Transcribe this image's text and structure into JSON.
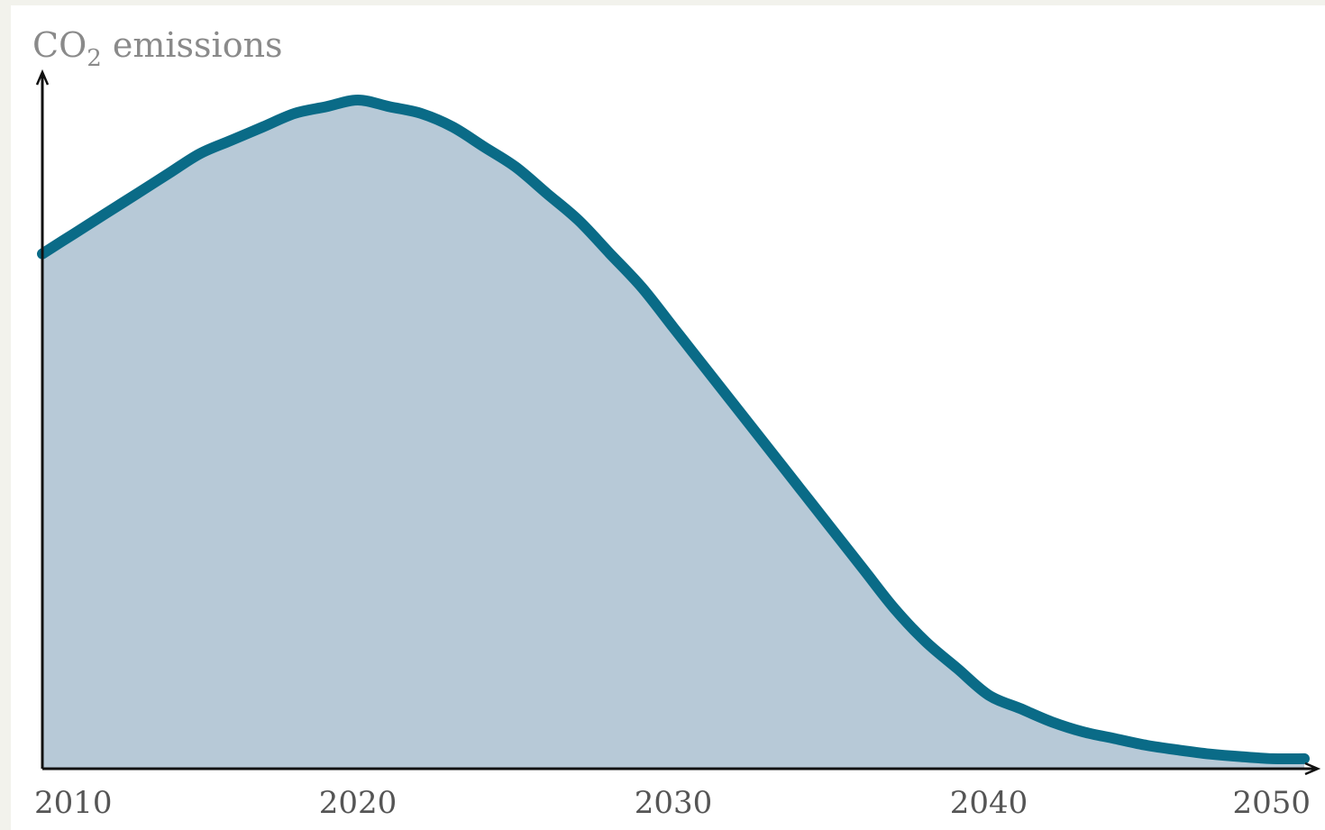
{
  "chart_data": {
    "type": "area",
    "title": "",
    "ylabel": {
      "main": "CO",
      "sub": "2",
      "rest": " emissions"
    },
    "xlabel": "",
    "x_ticks": [
      "2010",
      "2020",
      "2030",
      "2040",
      "2050"
    ],
    "xlim": [
      2010,
      2050
    ],
    "ylim": [
      0,
      1
    ],
    "y_ticks": false,
    "grid": false,
    "legend": "none",
    "series": [
      {
        "x": [
          2010,
          2011,
          2012,
          2013,
          2014,
          2015,
          2016,
          2017,
          2018,
          2019,
          2020,
          2021,
          2022,
          2023,
          2024,
          2025,
          2026,
          2027,
          2028,
          2029,
          2030,
          2031,
          2032,
          2033,
          2034,
          2035,
          2036,
          2037,
          2038,
          2039,
          2040,
          2041,
          2042,
          2043,
          2044,
          2045,
          2046,
          2047,
          2048,
          2049,
          2050
        ],
        "values": [
          0.77,
          0.8,
          0.83,
          0.86,
          0.89,
          0.92,
          0.94,
          0.96,
          0.98,
          0.99,
          1.0,
          0.99,
          0.98,
          0.96,
          0.93,
          0.9,
          0.86,
          0.82,
          0.77,
          0.72,
          0.66,
          0.6,
          0.54,
          0.48,
          0.42,
          0.36,
          0.3,
          0.24,
          0.19,
          0.15,
          0.11,
          0.09,
          0.07,
          0.055,
          0.045,
          0.035,
          0.028,
          0.022,
          0.018,
          0.015,
          0.015
        ]
      }
    ],
    "colors": {
      "fill": "#b7c9d7",
      "line": "#0a6b87",
      "axis": "#111111"
    }
  }
}
